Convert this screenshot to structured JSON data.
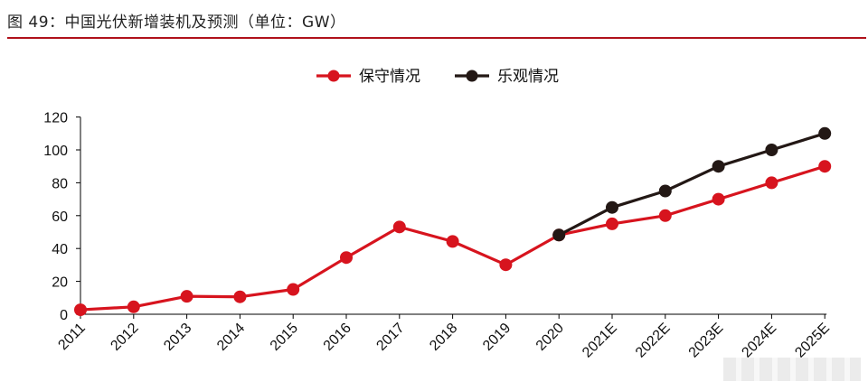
{
  "figure": {
    "title": "图 49：中国光伏新增装机及预测（单位：GW）"
  },
  "colors": {
    "conservative": "#d7141e",
    "optimistic": "#231815",
    "title_rule": "#b0111b"
  },
  "chart_data": {
    "type": "line",
    "categories": [
      "2011",
      "2012",
      "2013",
      "2014",
      "2015",
      "2016",
      "2017",
      "2018",
      "2019",
      "2020",
      "2021E",
      "2022E",
      "2023E",
      "2024E",
      "2025E"
    ],
    "series": [
      {
        "name": "保守情况",
        "color": "#d7141e",
        "values": [
          2.7,
          4.5,
          10.9,
          10.6,
          15.1,
          34.5,
          53.1,
          44.3,
          30.1,
          48.2,
          55,
          60,
          70,
          80,
          90
        ]
      },
      {
        "name": "乐观情况",
        "color": "#231815",
        "values": [
          null,
          null,
          null,
          null,
          null,
          null,
          null,
          null,
          null,
          48.2,
          65,
          75,
          90,
          100,
          110
        ]
      }
    ],
    "yticks": [
      0,
      20,
      40,
      60,
      80,
      100,
      120
    ],
    "ylim": [
      0,
      120
    ],
    "legend_position": "top-center",
    "grid": false
  }
}
